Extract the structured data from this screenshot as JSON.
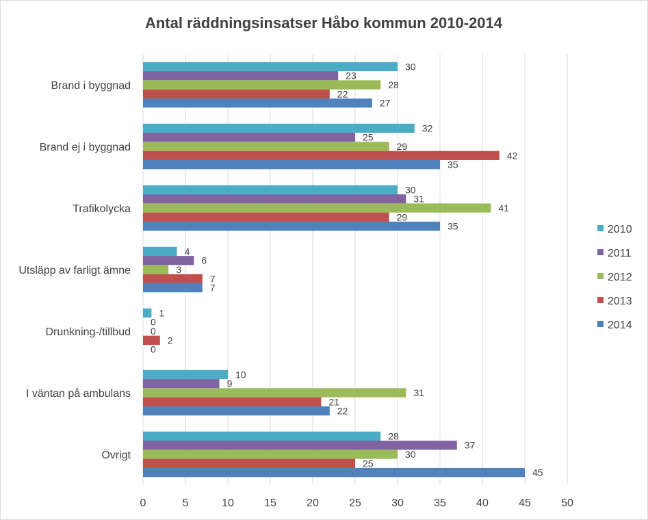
{
  "chart_data": {
    "type": "bar",
    "orientation": "horizontal",
    "title": "Antal räddningsinsatser Håbo kommun 2010-2014",
    "xlabel": "",
    "ylabel": "",
    "xlim": [
      0,
      50
    ],
    "xticks": [
      "0",
      "5",
      "10",
      "15",
      "20",
      "25",
      "30",
      "35",
      "40",
      "45",
      "50"
    ],
    "grid": true,
    "legend_position": "right",
    "categories": [
      "Brand i byggnad",
      "Brand ej i byggnad",
      "Trafikolycka",
      "Utsläpp av farligt ämne",
      "Drunkning-/tillbud",
      "I väntan på ambulans",
      "Övrigt"
    ],
    "series": [
      {
        "name": "2010",
        "color": "#4bacc6",
        "values": [
          30,
          32,
          30,
          4,
          1,
          10,
          28
        ]
      },
      {
        "name": "2011",
        "color": "#8064a2",
        "values": [
          23,
          25,
          31,
          6,
          0,
          9,
          37
        ]
      },
      {
        "name": "2012",
        "color": "#9bbb59",
        "values": [
          28,
          29,
          41,
          3,
          0,
          31,
          30
        ]
      },
      {
        "name": "2013",
        "color": "#c0504d",
        "values": [
          22,
          42,
          29,
          7,
          2,
          21,
          25
        ]
      },
      {
        "name": "2014",
        "color": "#4f81bd",
        "values": [
          27,
          35,
          35,
          7,
          0,
          22,
          45
        ]
      }
    ]
  }
}
